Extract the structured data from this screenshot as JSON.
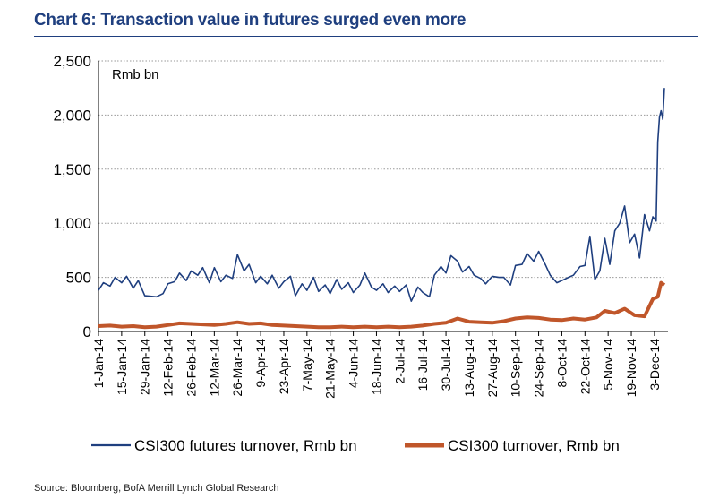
{
  "title": "Chart 6: Transaction value in futures surged even more",
  "source": "Source: Bloomberg, BofA Merrill Lynch Global Research",
  "colors": {
    "title": "#1f3f7f",
    "futures": "#1f3f7f",
    "cash": "#c0562a"
  },
  "chart_data": {
    "type": "line",
    "title": "Chart 6: Transaction value in futures surged even more",
    "unit_label": "Rmb bn",
    "ylabel": "",
    "xlabel": "",
    "ylim": [
      0,
      2500
    ],
    "yticks": [
      "0",
      "500",
      "1,000",
      "1,500",
      "2,000",
      "2,500"
    ],
    "xticks": [
      "1-Jan-14",
      "15-Jan-14",
      "29-Jan-14",
      "12-Feb-14",
      "26-Feb-14",
      "12-Mar-14",
      "26-Mar-14",
      "9-Apr-14",
      "23-Apr-14",
      "7-May-14",
      "21-May-14",
      "4-Jun-14",
      "18-Jun-14",
      "2-Jul-14",
      "16-Jul-14",
      "30-Jul-14",
      "13-Aug-14",
      "27-Aug-14",
      "10-Sep-14",
      "24-Sep-14",
      "8-Oct-14",
      "22-Oct-14",
      "5-Nov-14",
      "19-Nov-14",
      "3-Dec-14"
    ],
    "grid": true,
    "legend_position": "bottom",
    "series": [
      {
        "name": "CSI300 futures turnover, Rmb bn",
        "points": [
          [
            "2014-01-01",
            380
          ],
          [
            "2014-01-04",
            450
          ],
          [
            "2014-01-08",
            420
          ],
          [
            "2014-01-11",
            500
          ],
          [
            "2014-01-15",
            450
          ],
          [
            "2014-01-18",
            510
          ],
          [
            "2014-01-22",
            400
          ],
          [
            "2014-01-25",
            470
          ],
          [
            "2014-01-29",
            330
          ],
          [
            "2014-02-05",
            320
          ],
          [
            "2014-02-09",
            350
          ],
          [
            "2014-02-12",
            440
          ],
          [
            "2014-02-16",
            460
          ],
          [
            "2014-02-19",
            540
          ],
          [
            "2014-02-23",
            470
          ],
          [
            "2014-02-26",
            560
          ],
          [
            "2014-03-02",
            520
          ],
          [
            "2014-03-05",
            590
          ],
          [
            "2014-03-09",
            450
          ],
          [
            "2014-03-12",
            590
          ],
          [
            "2014-03-16",
            460
          ],
          [
            "2014-03-19",
            520
          ],
          [
            "2014-03-23",
            490
          ],
          [
            "2014-03-26",
            710
          ],
          [
            "2014-03-30",
            560
          ],
          [
            "2014-04-02",
            620
          ],
          [
            "2014-04-06",
            450
          ],
          [
            "2014-04-09",
            510
          ],
          [
            "2014-04-13",
            440
          ],
          [
            "2014-04-16",
            520
          ],
          [
            "2014-04-20",
            400
          ],
          [
            "2014-04-23",
            460
          ],
          [
            "2014-04-27",
            510
          ],
          [
            "2014-04-30",
            330
          ],
          [
            "2014-05-04",
            440
          ],
          [
            "2014-05-07",
            380
          ],
          [
            "2014-05-11",
            500
          ],
          [
            "2014-05-14",
            370
          ],
          [
            "2014-05-18",
            430
          ],
          [
            "2014-05-21",
            350
          ],
          [
            "2014-05-25",
            480
          ],
          [
            "2014-05-28",
            390
          ],
          [
            "2014-06-01",
            450
          ],
          [
            "2014-06-04",
            360
          ],
          [
            "2014-06-08",
            430
          ],
          [
            "2014-06-11",
            540
          ],
          [
            "2014-06-15",
            410
          ],
          [
            "2014-06-18",
            380
          ],
          [
            "2014-06-22",
            440
          ],
          [
            "2014-06-25",
            360
          ],
          [
            "2014-06-29",
            420
          ],
          [
            "2014-07-02",
            370
          ],
          [
            "2014-07-06",
            430
          ],
          [
            "2014-07-09",
            280
          ],
          [
            "2014-07-13",
            410
          ],
          [
            "2014-07-16",
            360
          ],
          [
            "2014-07-20",
            320
          ],
          [
            "2014-07-23",
            520
          ],
          [
            "2014-07-27",
            600
          ],
          [
            "2014-07-30",
            540
          ],
          [
            "2014-08-02",
            700
          ],
          [
            "2014-08-06",
            650
          ],
          [
            "2014-08-09",
            550
          ],
          [
            "2014-08-13",
            600
          ],
          [
            "2014-08-16",
            520
          ],
          [
            "2014-08-20",
            490
          ],
          [
            "2014-08-23",
            440
          ],
          [
            "2014-08-27",
            510
          ],
          [
            "2014-08-31",
            500
          ],
          [
            "2014-09-03",
            500
          ],
          [
            "2014-09-07",
            430
          ],
          [
            "2014-09-10",
            610
          ],
          [
            "2014-09-14",
            620
          ],
          [
            "2014-09-17",
            720
          ],
          [
            "2014-09-21",
            650
          ],
          [
            "2014-09-24",
            740
          ],
          [
            "2014-09-28",
            620
          ],
          [
            "2014-10-01",
            520
          ],
          [
            "2014-10-05",
            450
          ],
          [
            "2014-10-08",
            470
          ],
          [
            "2014-10-12",
            500
          ],
          [
            "2014-10-15",
            520
          ],
          [
            "2014-10-19",
            600
          ],
          [
            "2014-10-22",
            610
          ],
          [
            "2014-10-25",
            880
          ],
          [
            "2014-10-28",
            480
          ],
          [
            "2014-10-31",
            560
          ],
          [
            "2014-11-03",
            860
          ],
          [
            "2014-11-06",
            620
          ],
          [
            "2014-11-09",
            930
          ],
          [
            "2014-11-12",
            1000
          ],
          [
            "2014-11-15",
            1160
          ],
          [
            "2014-11-18",
            820
          ],
          [
            "2014-11-21",
            900
          ],
          [
            "2014-11-24",
            680
          ],
          [
            "2014-11-27",
            1080
          ],
          [
            "2014-11-30",
            930
          ],
          [
            "2014-12-02",
            1060
          ],
          [
            "2014-12-04",
            1020
          ],
          [
            "2014-12-05",
            1750
          ],
          [
            "2014-12-06",
            1980
          ],
          [
            "2014-12-07",
            2040
          ],
          [
            "2014-12-08",
            1960
          ],
          [
            "2014-12-09",
            2250
          ]
        ]
      },
      {
        "name": "CSI300 turnover, Rmb bn",
        "points": [
          [
            "2014-01-01",
            50
          ],
          [
            "2014-01-08",
            55
          ],
          [
            "2014-01-15",
            45
          ],
          [
            "2014-01-22",
            50
          ],
          [
            "2014-01-29",
            40
          ],
          [
            "2014-02-05",
            45
          ],
          [
            "2014-02-12",
            60
          ],
          [
            "2014-02-19",
            75
          ],
          [
            "2014-02-26",
            70
          ],
          [
            "2014-03-05",
            65
          ],
          [
            "2014-03-12",
            60
          ],
          [
            "2014-03-19",
            70
          ],
          [
            "2014-03-26",
            85
          ],
          [
            "2014-04-02",
            70
          ],
          [
            "2014-04-09",
            75
          ],
          [
            "2014-04-16",
            60
          ],
          [
            "2014-04-23",
            55
          ],
          [
            "2014-04-30",
            50
          ],
          [
            "2014-05-07",
            45
          ],
          [
            "2014-05-14",
            40
          ],
          [
            "2014-05-21",
            40
          ],
          [
            "2014-05-28",
            45
          ],
          [
            "2014-06-04",
            40
          ],
          [
            "2014-06-11",
            45
          ],
          [
            "2014-06-18",
            40
          ],
          [
            "2014-06-25",
            45
          ],
          [
            "2014-07-02",
            40
          ],
          [
            "2014-07-09",
            45
          ],
          [
            "2014-07-16",
            55
          ],
          [
            "2014-07-23",
            70
          ],
          [
            "2014-07-30",
            80
          ],
          [
            "2014-08-06",
            120
          ],
          [
            "2014-08-13",
            90
          ],
          [
            "2014-08-20",
            85
          ],
          [
            "2014-08-27",
            80
          ],
          [
            "2014-09-03",
            95
          ],
          [
            "2014-09-10",
            120
          ],
          [
            "2014-09-17",
            130
          ],
          [
            "2014-09-24",
            125
          ],
          [
            "2014-10-01",
            110
          ],
          [
            "2014-10-08",
            105
          ],
          [
            "2014-10-15",
            120
          ],
          [
            "2014-10-22",
            110
          ],
          [
            "2014-10-29",
            130
          ],
          [
            "2014-11-03",
            190
          ],
          [
            "2014-11-09",
            170
          ],
          [
            "2014-11-15",
            210
          ],
          [
            "2014-11-21",
            150
          ],
          [
            "2014-11-27",
            140
          ],
          [
            "2014-12-02",
            300
          ],
          [
            "2014-12-05",
            320
          ],
          [
            "2014-12-07",
            450
          ],
          [
            "2014-12-09",
            430
          ]
        ]
      }
    ]
  }
}
